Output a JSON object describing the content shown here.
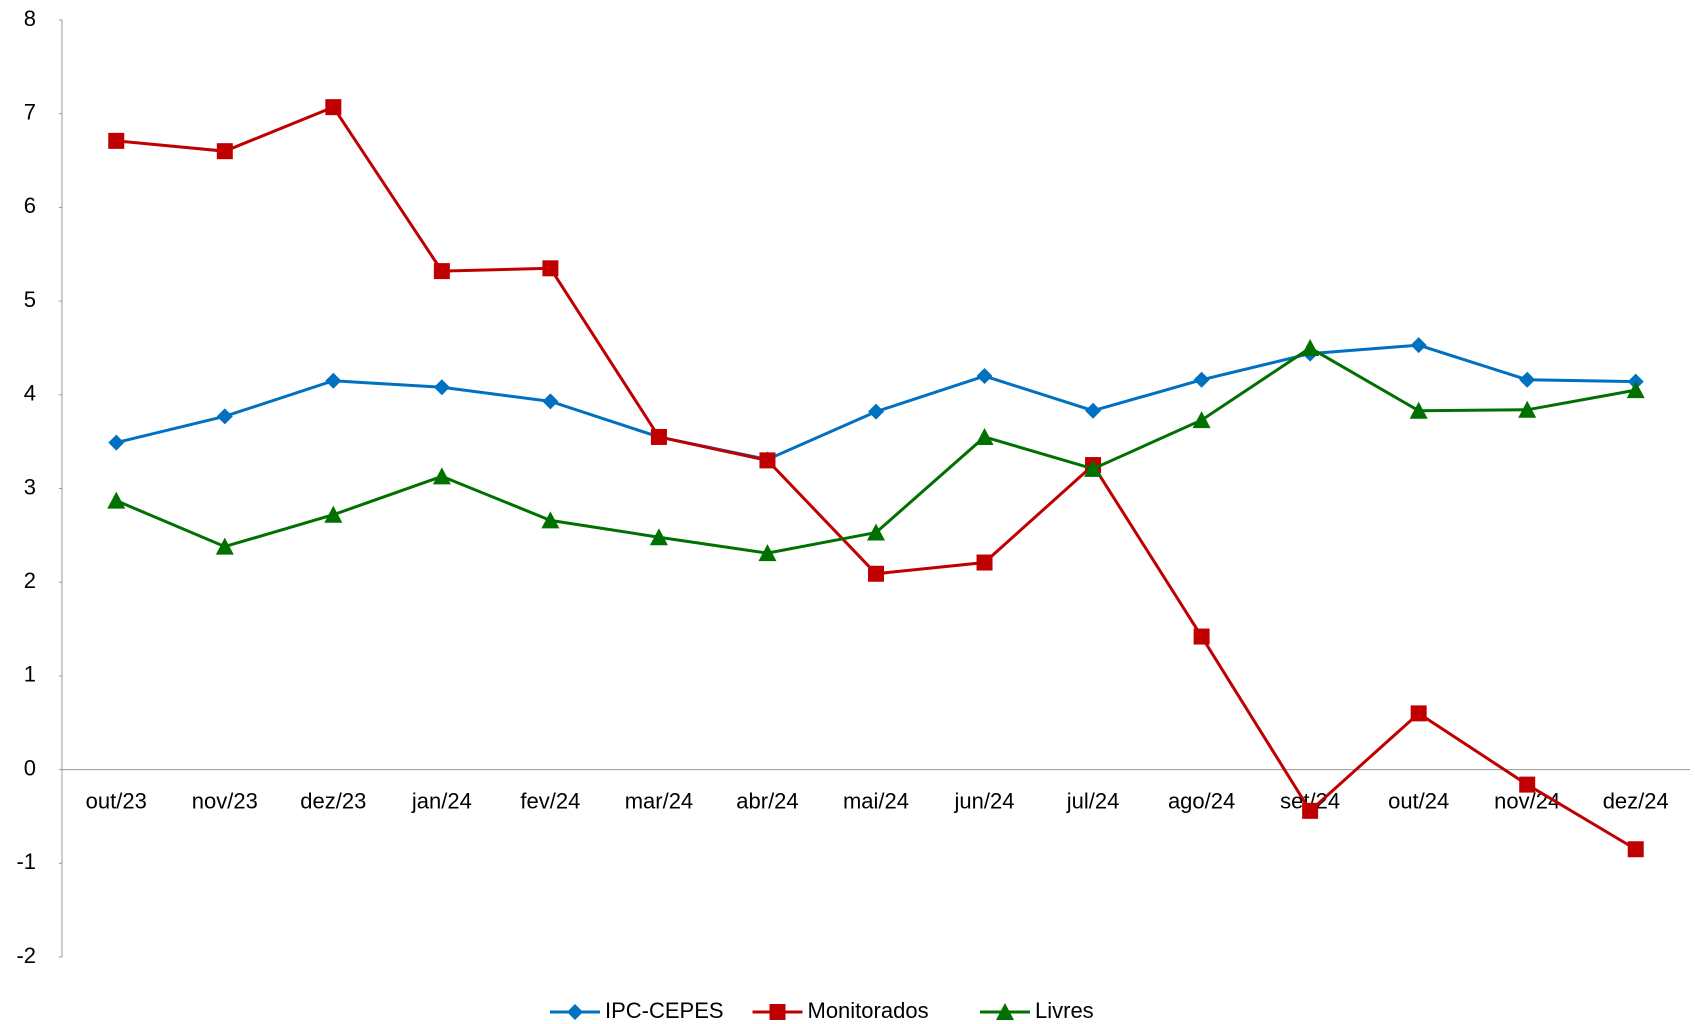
{
  "chart_data": {
    "type": "line",
    "categories": [
      "out/23",
      "nov/23",
      "dez/23",
      "jan/24",
      "fev/24",
      "mar/24",
      "abr/24",
      "mai/24",
      "jun/24",
      "jul/24",
      "ago/24",
      "set/24",
      "out/24",
      "nov/24",
      "dez/24"
    ],
    "series": [
      {
        "name": "IPC-CEPES",
        "color": "#0070c0",
        "marker": "diamond",
        "values": [
          3.49,
          3.77,
          4.15,
          4.08,
          3.93,
          3.55,
          3.31,
          3.82,
          4.2,
          3.83,
          4.16,
          4.44,
          4.53,
          4.16,
          4.14
        ]
      },
      {
        "name": "Monitorados",
        "color": "#c00000",
        "marker": "square",
        "values": [
          6.71,
          6.6,
          7.07,
          5.32,
          5.35,
          3.55,
          3.3,
          2.09,
          2.21,
          3.25,
          1.42,
          -0.44,
          0.6,
          -0.16,
          -0.85
        ]
      },
      {
        "name": "Livres",
        "color": "#007000",
        "marker": "triangle",
        "values": [
          2.87,
          2.38,
          2.72,
          3.13,
          2.66,
          2.48,
          2.31,
          2.53,
          3.55,
          3.21,
          3.73,
          4.5,
          3.83,
          3.84,
          4.05
        ]
      }
    ],
    "ylim": [
      -2,
      8
    ],
    "yticks": [
      -2,
      -1,
      0,
      1,
      2,
      3,
      4,
      5,
      6,
      7,
      8
    ],
    "grid": false,
    "legend": "bottom"
  }
}
